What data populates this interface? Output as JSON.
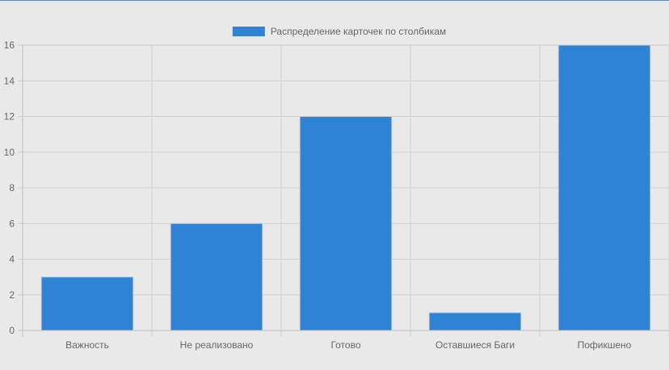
{
  "chart_data": {
    "type": "bar",
    "categories": [
      "Важность",
      "Не реализовано",
      "Готово",
      "Оставшиеся Баги",
      "Пофикшено"
    ],
    "series": [
      {
        "name": "Распределение карточек по столбикам",
        "values": [
          3,
          6,
          12,
          1,
          16
        ],
        "color": "#2e83d5"
      }
    ],
    "ylim": [
      0,
      16
    ],
    "yticks": [
      0,
      2,
      4,
      6,
      8,
      10,
      12,
      14,
      16
    ],
    "grid": true,
    "legend_position": "top-center",
    "colors": {
      "background": "#e9e9e9",
      "grid": "#cfcfcf",
      "axis": "#bdbdbd",
      "text": "#666666",
      "bar_border": "#c9c9c9"
    }
  }
}
